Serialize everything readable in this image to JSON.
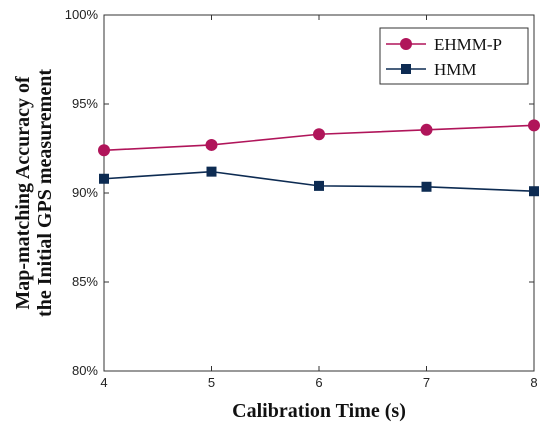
{
  "chart_data": {
    "type": "line",
    "title": "",
    "xlabel": "Calibration Time (s)",
    "ylabel": [
      "Map-matching Accuracy of",
      "the Initial GPS measurement"
    ],
    "x": [
      4,
      5,
      6,
      7,
      8
    ],
    "xlim": [
      4,
      8
    ],
    "xticks": [
      "4",
      "5",
      "6",
      "7",
      "8"
    ],
    "ylim": [
      80,
      100
    ],
    "yticks": [
      80,
      85,
      90,
      95,
      100
    ],
    "ytick_labels": [
      "80%",
      "85%",
      "90%",
      "95%",
      "100%"
    ],
    "grid": false,
    "legend": "top-right",
    "series": [
      {
        "name": "EHMM-P",
        "values": [
          92.4,
          92.7,
          93.3,
          93.55,
          93.8
        ],
        "color": "#b0155a",
        "marker": "circle"
      },
      {
        "name": "HMM",
        "values": [
          90.8,
          91.2,
          90.4,
          90.35,
          90.1
        ],
        "color": "#0d2b52",
        "marker": "square"
      }
    ]
  }
}
